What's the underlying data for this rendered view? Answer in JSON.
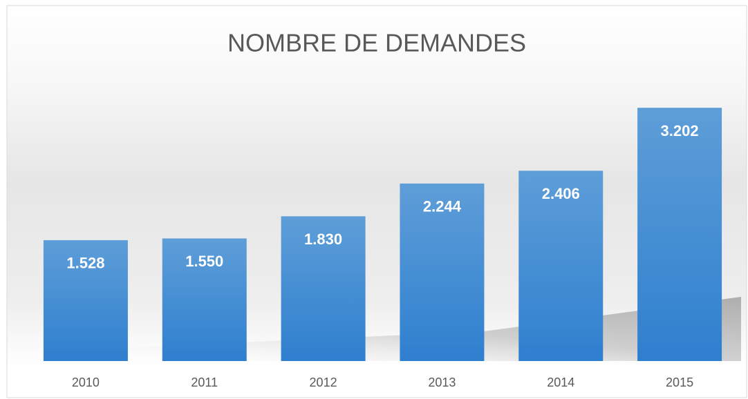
{
  "chart_data": {
    "type": "bar",
    "title": "NOMBRE DE DEMANDES",
    "categories": [
      "2010",
      "2011",
      "2012",
      "2013",
      "2014",
      "2015"
    ],
    "values": [
      1528,
      1550,
      1830,
      2244,
      2406,
      3202
    ],
    "value_labels": [
      "1.528",
      "1.550",
      "1.830",
      "2.244",
      "2.406",
      "3.202"
    ],
    "color": "#5b9bd5",
    "ylim": [
      0,
      3500
    ]
  }
}
